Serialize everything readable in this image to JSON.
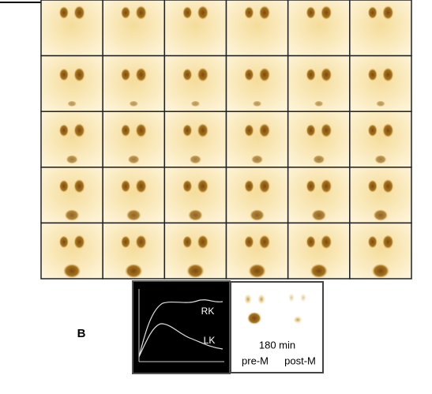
{
  "panel_label": "B",
  "curve_panel": {
    "labels": [
      "RK",
      "LK"
    ]
  },
  "image_panel": {
    "time": "180 min",
    "conditions": [
      "pre-M",
      "post-M"
    ]
  }
}
